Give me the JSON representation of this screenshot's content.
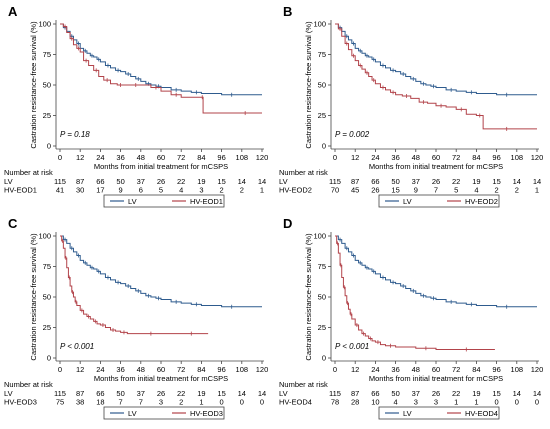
{
  "chart_data": [
    {
      "type": "line",
      "panel_label": "A",
      "ylabel": "Castration resistance-free survival (%)",
      "xlabel": "Months from initial treatment for mCSPS",
      "xlim": [
        0,
        120
      ],
      "ylim": [
        0,
        100
      ],
      "xticks": [
        "0",
        "12",
        "24",
        "36",
        "48",
        "60",
        "72",
        "84",
        "96",
        "108",
        "120"
      ],
      "yticks": [
        "0",
        "25",
        "50",
        "75",
        "100"
      ],
      "pvalue": "P = 0.18",
      "risk_title": "Number at risk",
      "risk_table": [
        {
          "label": "LV",
          "values": [
            "115",
            "87",
            "66",
            "50",
            "37",
            "26",
            "22",
            "19",
            "15",
            "14",
            "14"
          ]
        },
        {
          "label": "HV-EOD1",
          "values": [
            "41",
            "30",
            "17",
            "9",
            "6",
            "5",
            "4",
            "3",
            "2",
            "2",
            "1"
          ]
        }
      ],
      "series": [
        {
          "name": "LV",
          "color": "#2e5b8e",
          "x": [
            0,
            2,
            4,
            6,
            8,
            10,
            12,
            14,
            16,
            18,
            20,
            22,
            24,
            27,
            30,
            33,
            36,
            39,
            42,
            45,
            48,
            51,
            54,
            57,
            60,
            66,
            72,
            78,
            84,
            96,
            108,
            120
          ],
          "y": [
            100,
            97,
            94,
            90,
            87,
            84,
            80,
            78,
            76,
            74,
            73,
            71,
            69,
            66,
            64,
            62,
            61,
            59,
            57,
            55,
            53,
            51,
            50,
            49,
            48,
            46,
            45,
            44,
            43,
            42,
            42,
            42
          ]
        },
        {
          "name": "HV-EOD1",
          "color": "#b2434a",
          "x": [
            0,
            2,
            4,
            6,
            8,
            10,
            12,
            14,
            17,
            20,
            23,
            26,
            30,
            34,
            38,
            42,
            48,
            54,
            60,
            66,
            72,
            84,
            85,
            100,
            120
          ],
          "y": [
            100,
            98,
            93,
            88,
            83,
            80,
            77,
            70,
            66,
            62,
            57,
            54,
            51,
            50,
            50,
            50,
            50,
            48,
            45,
            42,
            40,
            40,
            27,
            27,
            27
          ]
        }
      ],
      "censor_marks": true
    },
    {
      "type": "line",
      "panel_label": "B",
      "ylabel": "Castration resistance-free survival (%)",
      "xlabel": "Months from initial treatment for mCSPS",
      "xlim": [
        0,
        120
      ],
      "ylim": [
        0,
        100
      ],
      "xticks": [
        "0",
        "12",
        "24",
        "36",
        "48",
        "60",
        "72",
        "84",
        "96",
        "108",
        "120"
      ],
      "yticks": [
        "0",
        "25",
        "50",
        "75",
        "100"
      ],
      "pvalue": "P = 0.002",
      "risk_title": "Number at risk",
      "risk_table": [
        {
          "label": "LV",
          "values": [
            "115",
            "87",
            "66",
            "50",
            "37",
            "26",
            "22",
            "19",
            "15",
            "14",
            "14"
          ]
        },
        {
          "label": "HV-EOD2",
          "values": [
            "70",
            "45",
            "26",
            "15",
            "9",
            "7",
            "5",
            "4",
            "2",
            "2",
            "1"
          ]
        }
      ],
      "series": [
        {
          "name": "LV",
          "color": "#2e5b8e",
          "x": [
            0,
            2,
            4,
            6,
            8,
            10,
            12,
            14,
            16,
            18,
            20,
            22,
            24,
            27,
            30,
            33,
            36,
            39,
            42,
            45,
            48,
            51,
            54,
            57,
            60,
            66,
            72,
            78,
            84,
            96,
            108,
            120
          ],
          "y": [
            100,
            97,
            94,
            90,
            87,
            84,
            80,
            78,
            76,
            74,
            73,
            71,
            69,
            66,
            64,
            62,
            61,
            59,
            57,
            55,
            53,
            51,
            50,
            49,
            48,
            46,
            45,
            44,
            43,
            42,
            42,
            42
          ]
        },
        {
          "name": "HV-EOD2",
          "color": "#b2434a",
          "x": [
            0,
            2,
            4,
            6,
            8,
            10,
            12,
            14,
            16,
            18,
            20,
            22,
            24,
            27,
            30,
            33,
            36,
            40,
            45,
            50,
            55,
            60,
            66,
            72,
            78,
            84,
            88,
            96,
            108,
            120
          ],
          "y": [
            100,
            96,
            90,
            84,
            79,
            74,
            70,
            66,
            63,
            60,
            57,
            54,
            51,
            48,
            46,
            44,
            42,
            41,
            39,
            36,
            35,
            33,
            32,
            30,
            26,
            25,
            14,
            14,
            14,
            14
          ]
        }
      ],
      "censor_marks": true
    },
    {
      "type": "line",
      "panel_label": "C",
      "ylabel": "Castration resistance-free survival (%)",
      "xlabel": "Months from initial treatment for mCSPS",
      "xlim": [
        0,
        120
      ],
      "ylim": [
        0,
        100
      ],
      "xticks": [
        "0",
        "12",
        "24",
        "36",
        "48",
        "60",
        "72",
        "84",
        "96",
        "108",
        "120"
      ],
      "yticks": [
        "0",
        "25",
        "50",
        "75",
        "100"
      ],
      "pvalue": "P < 0.001",
      "risk_title": "Number at risk",
      "risk_table": [
        {
          "label": "LV",
          "values": [
            "115",
            "87",
            "66",
            "50",
            "37",
            "26",
            "22",
            "19",
            "15",
            "14",
            "14"
          ]
        },
        {
          "label": "HV-EOD3",
          "values": [
            "75",
            "38",
            "18",
            "7",
            "7",
            "3",
            "2",
            "1",
            "0",
            "0",
            "0"
          ]
        }
      ],
      "series": [
        {
          "name": "LV",
          "color": "#2e5b8e",
          "x": [
            0,
            2,
            4,
            6,
            8,
            10,
            12,
            14,
            16,
            18,
            20,
            22,
            24,
            27,
            30,
            33,
            36,
            39,
            42,
            45,
            48,
            51,
            54,
            57,
            60,
            66,
            72,
            78,
            84,
            96,
            108,
            120
          ],
          "y": [
            100,
            97,
            94,
            90,
            87,
            84,
            80,
            78,
            76,
            74,
            73,
            71,
            69,
            66,
            64,
            62,
            61,
            59,
            57,
            55,
            53,
            51,
            50,
            49,
            48,
            46,
            45,
            44,
            43,
            42,
            42,
            42
          ]
        },
        {
          "name": "HV-EOD3",
          "color": "#b2434a",
          "x": [
            0,
            1,
            2,
            3,
            4,
            5,
            6,
            7,
            8,
            9,
            10,
            12,
            14,
            16,
            18,
            20,
            22,
            24,
            27,
            30,
            33,
            36,
            40,
            48,
            60,
            72,
            84,
            88
          ],
          "y": [
            100,
            96,
            90,
            82,
            74,
            66,
            59,
            54,
            50,
            46,
            43,
            39,
            36,
            34,
            32,
            30,
            28,
            27,
            25,
            23,
            22,
            21,
            20,
            20,
            20,
            20,
            20,
            20
          ]
        }
      ],
      "censor_marks": true
    },
    {
      "type": "line",
      "panel_label": "D",
      "ylabel": "Castration resistance-free survival (%)",
      "xlabel": "Months from initial treatment for mCSPS",
      "xlim": [
        0,
        120
      ],
      "ylim": [
        0,
        100
      ],
      "xticks": [
        "0",
        "12",
        "24",
        "36",
        "48",
        "60",
        "72",
        "84",
        "96",
        "108",
        "120"
      ],
      "yticks": [
        "0",
        "25",
        "50",
        "75",
        "100"
      ],
      "pvalue": "P < 0.001",
      "risk_title": "Number at risk",
      "risk_table": [
        {
          "label": "LV",
          "values": [
            "115",
            "87",
            "66",
            "50",
            "37",
            "26",
            "22",
            "19",
            "15",
            "14",
            "14"
          ]
        },
        {
          "label": "HV-EOD4",
          "values": [
            "78",
            "28",
            "10",
            "4",
            "3",
            "3",
            "1",
            "1",
            "0",
            "0",
            "0"
          ]
        }
      ],
      "series": [
        {
          "name": "LV",
          "color": "#2e5b8e",
          "x": [
            0,
            2,
            4,
            6,
            8,
            10,
            12,
            14,
            16,
            18,
            20,
            22,
            24,
            27,
            30,
            33,
            36,
            39,
            42,
            45,
            48,
            51,
            54,
            57,
            60,
            66,
            72,
            78,
            84,
            96,
            108,
            120
          ],
          "y": [
            100,
            97,
            94,
            90,
            87,
            84,
            80,
            78,
            76,
            74,
            73,
            71,
            69,
            66,
            64,
            62,
            61,
            59,
            57,
            55,
            53,
            51,
            50,
            49,
            48,
            46,
            45,
            44,
            43,
            42,
            42,
            42
          ]
        },
        {
          "name": "HV-EOD4",
          "color": "#b2434a",
          "x": [
            0,
            1,
            2,
            3,
            4,
            5,
            6,
            7,
            8,
            9,
            10,
            12,
            14,
            16,
            18,
            20,
            22,
            24,
            27,
            30,
            36,
            48,
            60,
            72,
            84,
            95
          ],
          "y": [
            100,
            94,
            86,
            76,
            66,
            58,
            51,
            45,
            40,
            36,
            32,
            27,
            23,
            20,
            18,
            16,
            14,
            13,
            11,
            10,
            9,
            8,
            7,
            7,
            7,
            7
          ]
        }
      ],
      "censor_marks": true
    }
  ]
}
